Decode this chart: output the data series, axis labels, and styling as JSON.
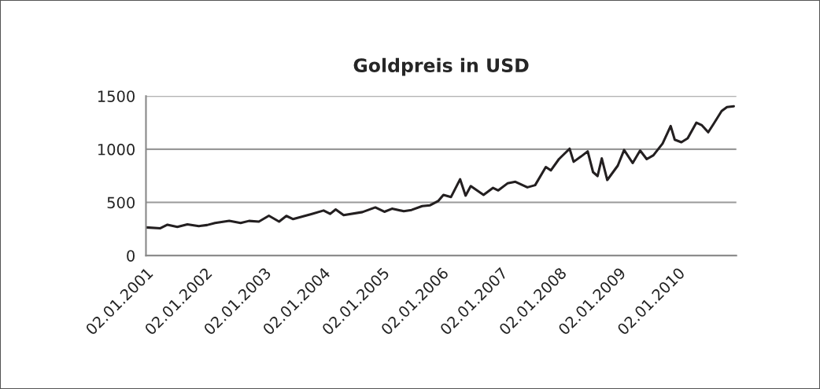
{
  "chart_data": {
    "type": "line",
    "title": "Goldpreis in USD",
    "x": [
      "2001-01-02",
      "2001-04-01",
      "2001-05-15",
      "2001-07-15",
      "2001-09-15",
      "2001-11-25",
      "2002-01-15",
      "2002-03-05",
      "2002-06-01",
      "2002-08-10",
      "2002-10-01",
      "2002-12-01",
      "2003-02-01",
      "2003-04-05",
      "2003-05-20",
      "2003-07-01",
      "2003-10-25",
      "2004-01-05",
      "2004-02-15",
      "2004-03-20",
      "2004-05-08",
      "2004-09-01",
      "2004-11-20",
      "2005-01-15",
      "2005-03-03",
      "2005-05-15",
      "2005-07-02",
      "2005-09-06",
      "2005-10-25",
      "2005-12-15",
      "2006-01-15",
      "2006-03-03",
      "2006-04-28",
      "2006-06-01",
      "2006-07-03",
      "2006-09-20",
      "2006-11-18",
      "2006-12-20",
      "2007-02-15",
      "2007-04-05",
      "2007-06-18",
      "2007-08-05",
      "2007-10-10",
      "2007-11-10",
      "2007-12-30",
      "2008-03-05",
      "2008-03-30",
      "2008-05-15",
      "2008-06-25",
      "2008-07-28",
      "2008-08-25",
      "2008-09-20",
      "2008-10-24",
      "2008-12-28",
      "2009-02-05",
      "2009-03-30",
      "2009-05-15",
      "2009-06-25",
      "2009-08-05",
      "2009-10-01",
      "2009-11-20",
      "2009-12-15",
      "2010-01-25",
      "2010-03-05",
      "2010-04-28",
      "2010-06-01",
      "2010-07-10",
      "2010-08-12",
      "2010-10-01",
      "2010-11-03",
      "2010-12-15"
    ],
    "series": [
      {
        "color": "#231f20",
        "values": [
          265,
          257,
          290,
          270,
          294,
          277,
          287,
          306,
          326,
          306,
          326,
          319,
          375,
          319,
          373,
          343,
          392,
          424,
          392,
          434,
          380,
          409,
          453,
          412,
          441,
          417,
          429,
          465,
          473,
          515,
          571,
          551,
          718,
          564,
          654,
          571,
          637,
          613,
          679,
          694,
          642,
          662,
          833,
          801,
          907,
          1005,
          882,
          932,
          980,
          785,
          748,
          914,
          711,
          846,
          993,
          870,
          988,
          907,
          943,
          1054,
          1218,
          1090,
          1066,
          1103,
          1250,
          1225,
          1160,
          1238,
          1360,
          1397,
          1404
        ]
      }
    ],
    "xlim": [
      "2001-01-02",
      "2010-12-31"
    ],
    "xticks": [
      {
        "value": "2001-01-02",
        "label": "02.01.2001"
      },
      {
        "value": "2002-01-02",
        "label": "02.01.2002"
      },
      {
        "value": "2003-01-02",
        "label": "02.01.2003"
      },
      {
        "value": "2004-01-02",
        "label": "02.01.2004"
      },
      {
        "value": "2005-01-02",
        "label": "02.01.2005"
      },
      {
        "value": "2006-01-02",
        "label": "02.01.2006"
      },
      {
        "value": "2007-01-02",
        "label": "02.01.2007"
      },
      {
        "value": "2008-01-02",
        "label": "02.01.2008"
      },
      {
        "value": "2009-01-02",
        "label": "02.01.2009"
      },
      {
        "value": "2010-01-02",
        "label": "02.01.2010"
      }
    ],
    "ylim": [
      0,
      1500
    ],
    "yticks": [
      0,
      500,
      1000,
      1500
    ],
    "grid": "y",
    "legend": false,
    "marker": "none",
    "line_style": "solid"
  }
}
